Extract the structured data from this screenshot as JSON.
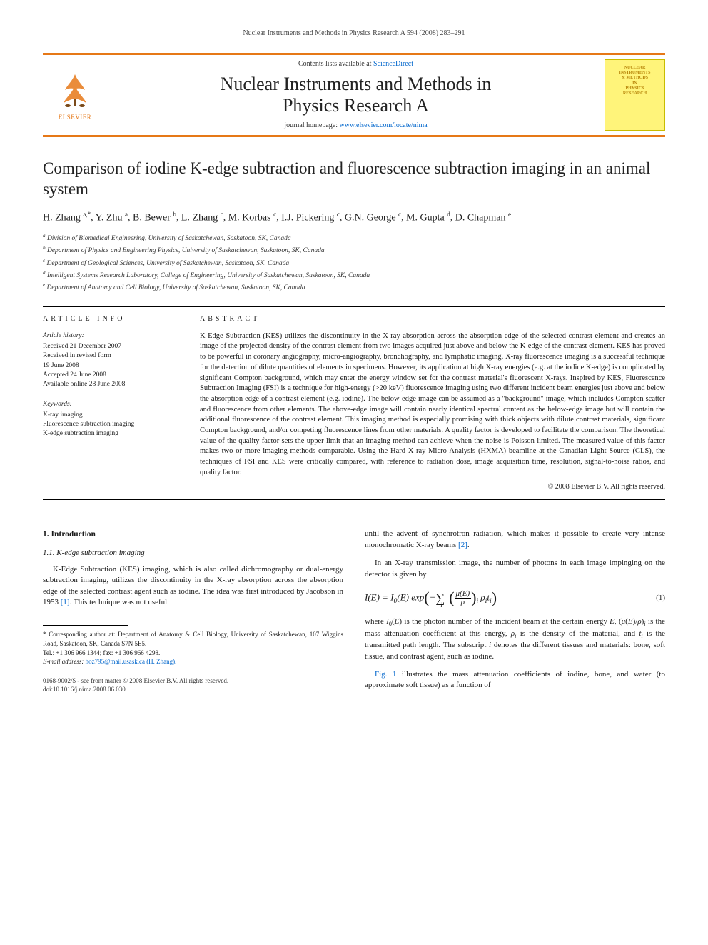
{
  "running_header": "Nuclear Instruments and Methods in Physics Research A 594 (2008) 283–291",
  "banner": {
    "publisher_label": "ELSEVIER",
    "contents_prefix": "Contents lists available at ",
    "contents_link": "ScienceDirect",
    "journal_name_line1": "Nuclear Instruments and Methods in",
    "journal_name_line2": "Physics Research A",
    "homepage_prefix": "journal homepage: ",
    "homepage_link": "www.elsevier.com/locate/nima",
    "cover_line1": "NUCLEAR",
    "cover_line2": "INSTRUMENTS",
    "cover_line3": "& METHODS",
    "cover_line4": "IN",
    "cover_line5": "PHYSICS",
    "cover_line6": "RESEARCH"
  },
  "title": "Comparison of iodine K-edge subtraction and fluorescence subtraction imaging in an animal system",
  "authors_html": "H. Zhang <sup>a,*</sup>, Y. Zhu <sup>a</sup>, B. Bewer <sup>b</sup>, L. Zhang <sup>c</sup>, M. Korbas <sup>c</sup>, I.J. Pickering <sup>c</sup>, G.N. George <sup>c</sup>, M. Gupta <sup>d</sup>, D. Chapman <sup>e</sup>",
  "affiliations": [
    "a Division of Biomedical Engineering, University of Saskatchewan, Saskatoon, SK, Canada",
    "b Department of Physics and Engineering Physics, University of Saskatchewan, Saskatoon, SK, Canada",
    "c Department of Geological Sciences, University of Saskatchewan, Saskatoon, SK, Canada",
    "d Intelligent Systems Research Laboratory, College of Engineering, University of Saskatchewan, Saskatoon, SK, Canada",
    "e Department of Anatomy and Cell Biology, University of Saskatchewan, Saskatoon, SK, Canada"
  ],
  "article_info": {
    "heading": "ARTICLE INFO",
    "history_label": "Article history:",
    "history": [
      "Received 21 December 2007",
      "Received in revised form",
      "19 June 2008",
      "Accepted 24 June 2008",
      "Available online 28 June 2008"
    ],
    "keywords_label": "Keywords:",
    "keywords": [
      "X-ray imaging",
      "Fluorescence subtraction imaging",
      "K-edge subtraction imaging"
    ]
  },
  "abstract": {
    "heading": "ABSTRACT",
    "text": "K-Edge Subtraction (KES) utilizes the discontinuity in the X-ray absorption across the absorption edge of the selected contrast element and creates an image of the projected density of the contrast element from two images acquired just above and below the K-edge of the contrast element. KES has proved to be powerful in coronary angiography, micro-angiography, bronchography, and lymphatic imaging. X-ray fluorescence imaging is a successful technique for the detection of dilute quantities of elements in specimens. However, its application at high X-ray energies (e.g. at the iodine K-edge) is complicated by significant Compton background, which may enter the energy window set for the contrast material's fluorescent X-rays. Inspired by KES, Fluorescence Subtraction Imaging (FSI) is a technique for high-energy (>20 keV) fluorescence imaging using two different incident beam energies just above and below the absorption edge of a contrast element (e.g. iodine). The below-edge image can be assumed as a \"background\" image, which includes Compton scatter and fluorescence from other elements. The above-edge image will contain nearly identical spectral content as the below-edge image but will contain the additional fluorescence of the contrast element. This imaging method is especially promising with thick objects with dilute contrast materials, significant Compton background, and/or competing fluorescence lines from other materials. A quality factor is developed to facilitate the comparison. The theoretical value of the quality factor sets the upper limit that an imaging method can achieve when the noise is Poisson limited. The measured value of this factor makes two or more imaging methods comparable. Using the Hard X-ray Micro-Analysis (HXMA) beamline at the Canadian Light Source (CLS), the techniques of FSI and KES were critically compared, with reference to radiation dose, image acquisition time, resolution, signal-to-noise ratios, and quality factor.",
    "copyright": "© 2008 Elsevier B.V. All rights reserved."
  },
  "body": {
    "section1_heading": "1.  Introduction",
    "section11_heading": "1.1.  K-edge subtraction imaging",
    "left_para1": "K-Edge Subtraction (KES) imaging, which is also called dichromography or dual-energy subtraction imaging, utilizes the discontinuity in the X-ray absorption across the absorption edge of the selected contrast agent such as iodine. The idea was first introduced by Jacobson in 1953 ",
    "left_ref1": "[1]",
    "left_para1b": ". This technique was not useful",
    "right_para1": "until the advent of synchrotron radiation, which makes it possible to create very intense monochromatic X-ray beams ",
    "right_ref2": "[2]",
    "right_para1b": ".",
    "right_para2": "In an X-ray transmission image, the number of photons in each image impinging on the detector is given by",
    "eq_num": "(1)",
    "right_para3a": "where ",
    "right_para3b": " is the photon number of the incident beam at the certain energy ",
    "right_para3c": " is the mass attenuation coefficient at this energy, ",
    "right_para3d": " is the density of the material, and ",
    "right_para3e": " is the transmitted path length. The subscript ",
    "right_para3f": " denotes the different tissues and materials: bone, soft tissue, and contrast agent, such as iodine.",
    "right_para4a": "",
    "right_fig1": "Fig. 1",
    "right_para4b": " illustrates the mass attenuation coefficients of iodine, bone, and water (to approximate soft tissue) as a function of"
  },
  "footnotes": {
    "corr_marker": "*",
    "corr_text": " Corresponding author at: Department of Anatomy & Cell Biology, University of Saskatchewan, 107 Wiggins Road, Saskatoon, SK, Canada S7N 5E5.",
    "tel": "Tel.: +1 306 966 1344; fax: +1 306 966 4298.",
    "email_label": "E-mail address: ",
    "email": "hoz795@mail.usask.ca (H. Zhang).",
    "front_matter": "0168-9002/$ - see front matter © 2008 Elsevier B.V. All rights reserved.",
    "doi": "doi:10.1016/j.nima.2008.06.030"
  },
  "colors": {
    "accent": "#e67817",
    "link": "#0066cc",
    "cover_bg": "#fff47a",
    "cover_border": "#c8bc00",
    "cover_text": "#b8860b"
  }
}
